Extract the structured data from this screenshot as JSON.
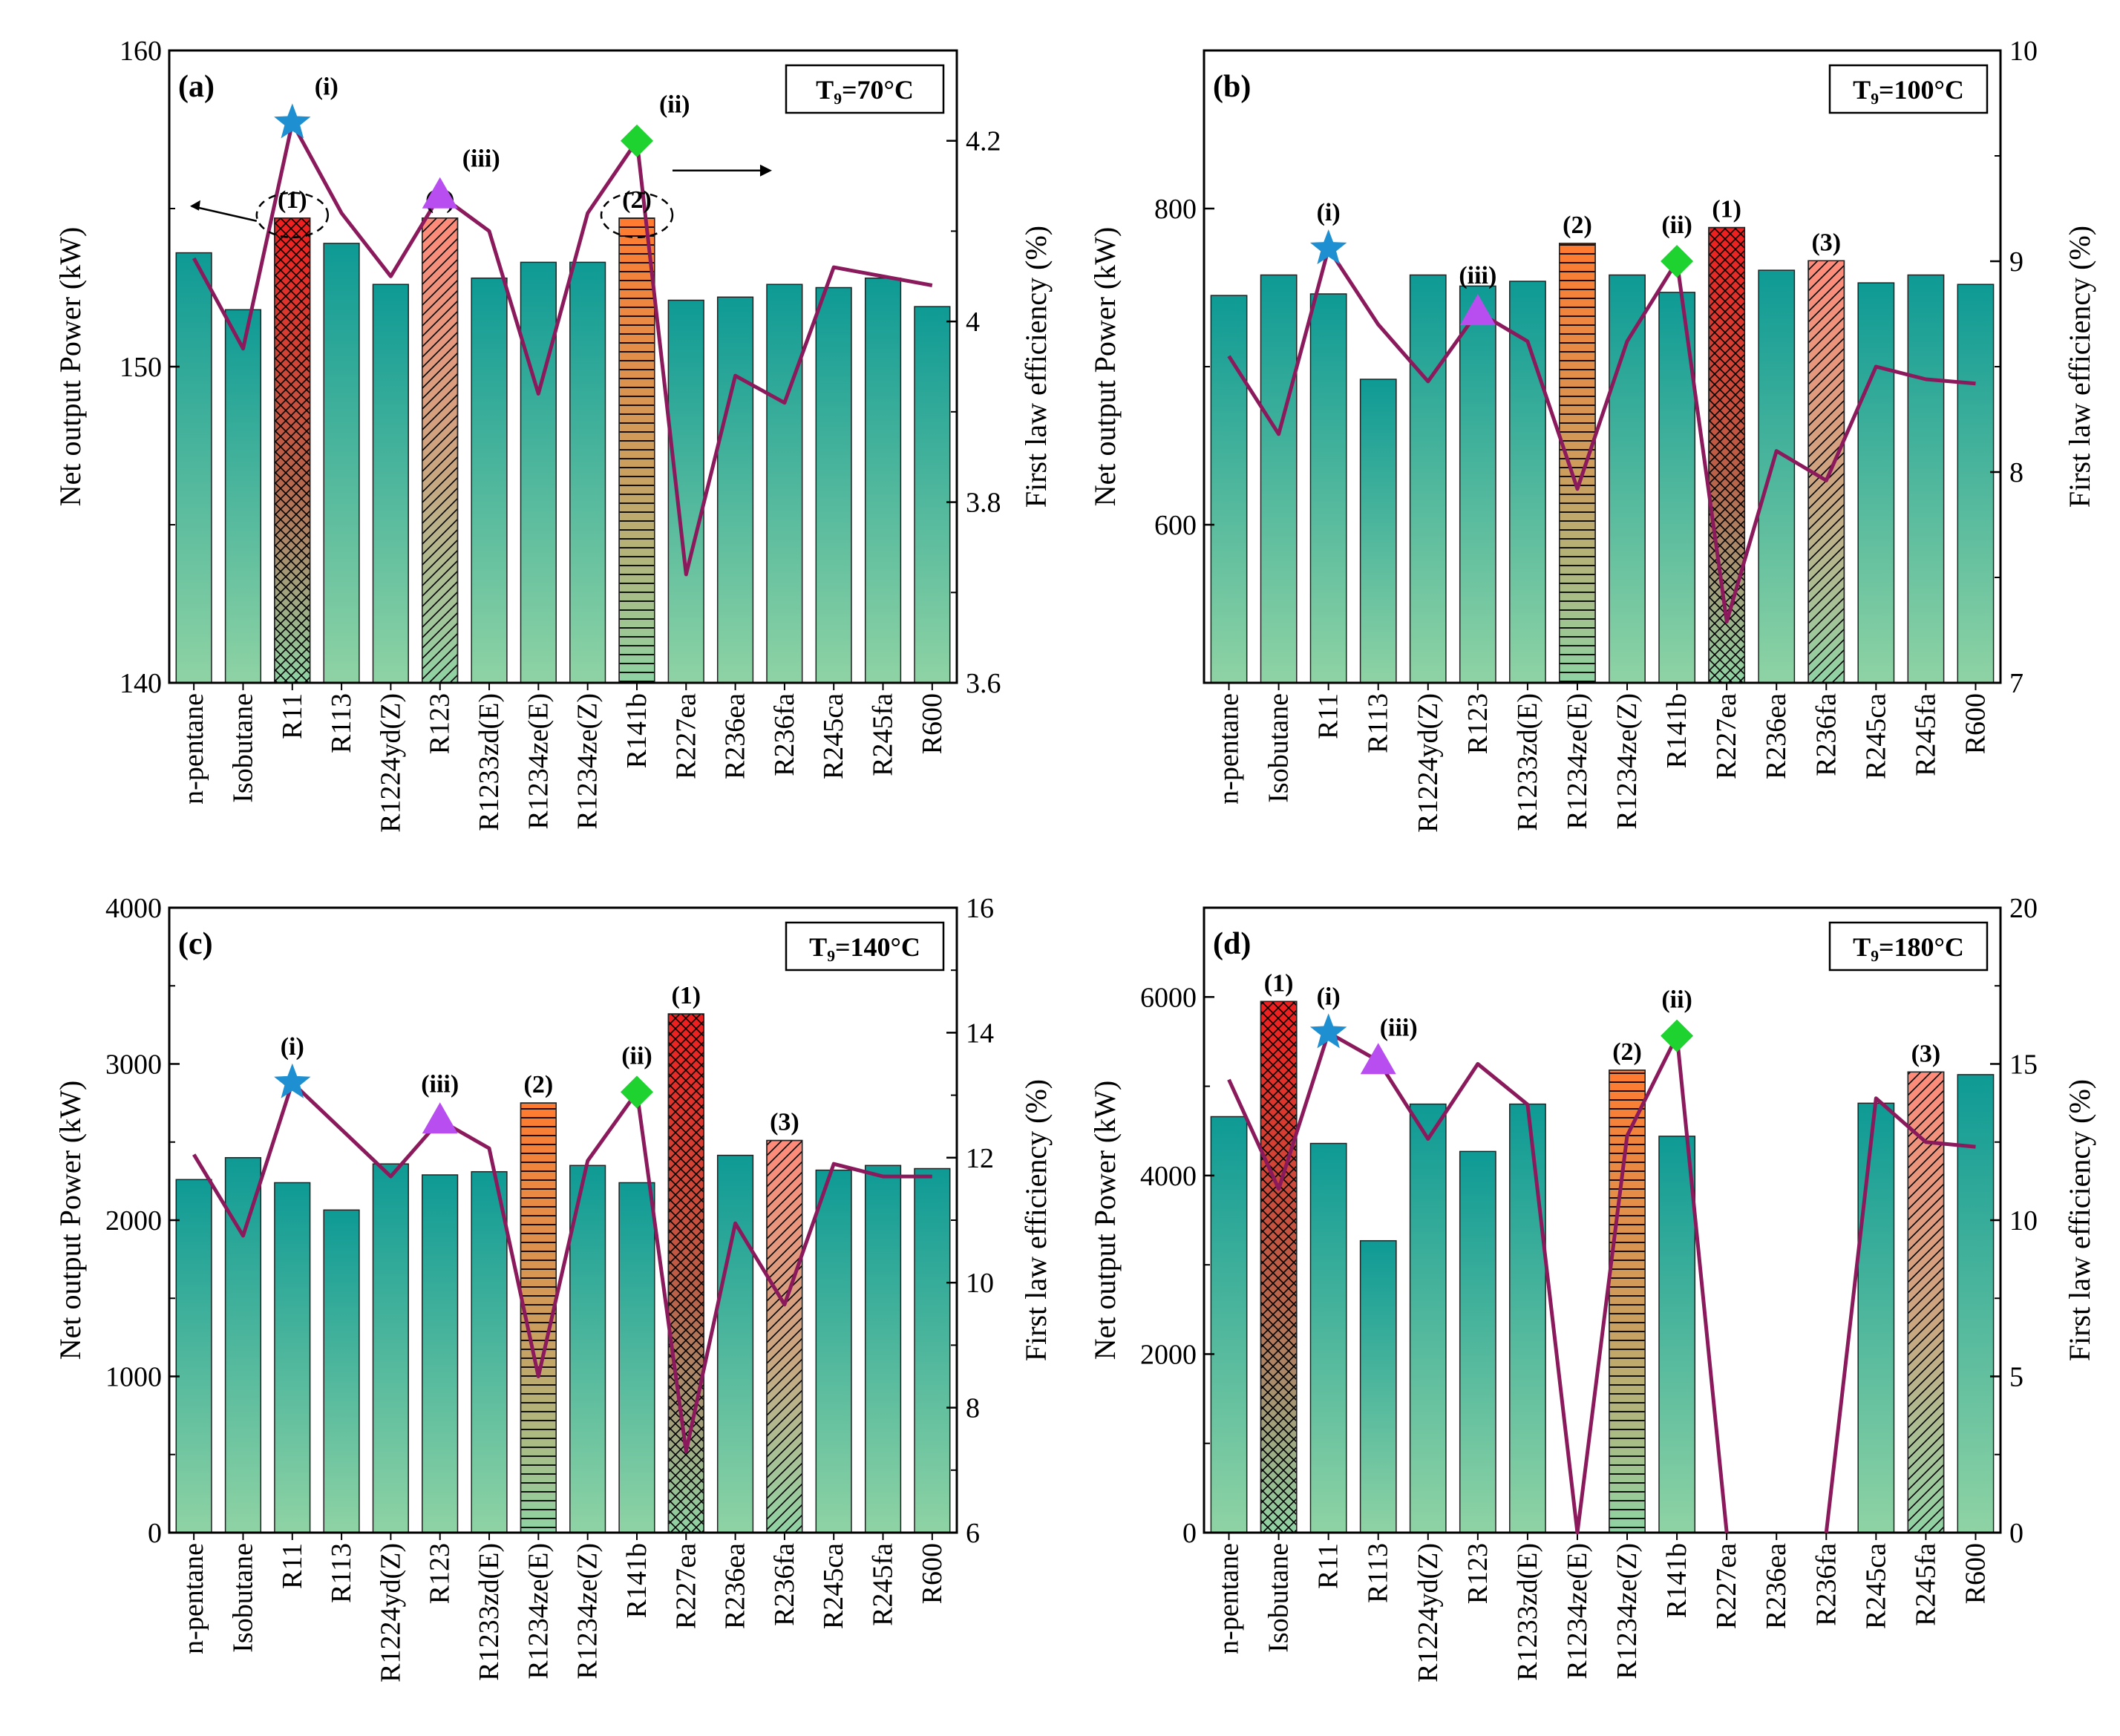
{
  "categories": [
    "n-pentane",
    "Isobutane",
    "R11",
    "R113",
    "R1224yd(Z)",
    "R123",
    "R1233zd(E)",
    "R1234ze(E)",
    "R1234ze(Z)",
    "R141b",
    "R227ea",
    "R236ea",
    "R236fa",
    "R245ca",
    "R245fa",
    "R600"
  ],
  "ylabel_left": "Net output Power (kW)",
  "ylabel_right": "First law efficiency (%)",
  "colors": {
    "bar_top": "#0e9a95",
    "bar_bottom": "#8fd3a4",
    "line": "#8b1a5c",
    "star": "#1e90d2",
    "triangle": "#b84ef0",
    "diamond": "#1ed230",
    "rank1": "#f01e1e",
    "rank2": "#ff7a30",
    "rank3": "#ff8a7a"
  },
  "chart_data": [
    {
      "type": "bar+line",
      "panel_label": "(a)",
      "temp_label": "T₉=70°C",
      "ylim_left": [
        140,
        160
      ],
      "yticks_left": [
        140,
        150,
        160
      ],
      "ylim_right": [
        3.6,
        4.3
      ],
      "yticks_right": [
        3.6,
        3.8,
        4.0,
        4.2
      ],
      "minor_left": [
        145,
        155
      ],
      "minor_right": [
        3.7,
        3.9,
        4.1,
        4.3
      ],
      "power": [
        153.6,
        151.8,
        154.7,
        153.9,
        152.6,
        154.7,
        152.8,
        153.3,
        153.3,
        154.7,
        152.1,
        152.2,
        152.6,
        152.5,
        152.8,
        151.9
      ],
      "efficiency": [
        4.07,
        3.97,
        4.22,
        4.12,
        4.05,
        4.14,
        4.1,
        3.92,
        4.12,
        4.2,
        3.72,
        3.94,
        3.91,
        4.06,
        4.05,
        4.04
      ],
      "rank_bars": [
        {
          "index": 2,
          "rank": "(1)",
          "pattern": "cross",
          "color": "rank1"
        },
        {
          "index": 9,
          "rank": "(2)",
          "pattern": "hlines",
          "color": "rank2"
        },
        {
          "index": 5,
          "rank": "(3)",
          "pattern": "diag",
          "color": "rank3"
        }
      ],
      "markers": [
        {
          "index": 2,
          "label": "(i)",
          "shape": "star"
        },
        {
          "index": 9,
          "label": "(ii)",
          "shape": "diamond"
        },
        {
          "index": 5,
          "label": "(iii)",
          "shape": "triangle"
        }
      ],
      "circled": [
        2,
        9
      ],
      "arrow_left_from": 2,
      "arrow_right_from": 9
    },
    {
      "type": "bar+line",
      "panel_label": "(b)",
      "temp_label": "T₉=100°C",
      "ylim_left": [
        500,
        900
      ],
      "yticks_left": [
        600,
        800
      ],
      "ylim_right": [
        7,
        10
      ],
      "yticks_right": [
        7,
        8,
        9,
        10
      ],
      "minor_left": [
        700
      ],
      "minor_right": [
        7.5,
        8.5,
        9.5
      ],
      "power": [
        745,
        758,
        746,
        692,
        758,
        751,
        754,
        778,
        758,
        747,
        788,
        761,
        767,
        753,
        758,
        752
      ],
      "efficiency": [
        8.55,
        8.18,
        9.06,
        8.7,
        8.43,
        8.76,
        8.62,
        7.92,
        8.62,
        9.0,
        7.29,
        8.1,
        7.96,
        8.5,
        8.44,
        8.42
      ],
      "rank_bars": [
        {
          "index": 10,
          "rank": "(1)",
          "pattern": "cross",
          "color": "rank1"
        },
        {
          "index": 7,
          "rank": "(2)",
          "pattern": "hlines",
          "color": "rank2"
        },
        {
          "index": 12,
          "rank": "(3)",
          "pattern": "diag",
          "color": "rank3"
        }
      ],
      "markers": [
        {
          "index": 2,
          "label": "(i)",
          "shape": "star"
        },
        {
          "index": 9,
          "label": "(ii)",
          "shape": "diamond"
        },
        {
          "index": 5,
          "label": "(iii)",
          "shape": "triangle"
        }
      ],
      "circled": [],
      "arrow_left_from": null,
      "arrow_right_from": null
    },
    {
      "type": "bar+line",
      "panel_label": "(c)",
      "temp_label": "T₉=140°C",
      "ylim_left": [
        0,
        4000
      ],
      "yticks_left": [
        0,
        1000,
        2000,
        3000,
        4000
      ],
      "ylim_right": [
        6,
        16
      ],
      "yticks_right": [
        6,
        8,
        10,
        12,
        14,
        16
      ],
      "minor_left": [
        500,
        1500,
        2500,
        3500
      ],
      "minor_right": [
        7,
        9,
        11,
        13,
        15
      ],
      "power": [
        2260,
        2400,
        2240,
        2065,
        2360,
        2290,
        2310,
        2750,
        2350,
        2240,
        3320,
        2415,
        2510,
        2320,
        2350,
        2330
      ],
      "efficiency": [
        12.05,
        10.75,
        13.2,
        12.45,
        11.7,
        12.6,
        12.15,
        8.5,
        11.95,
        13.05,
        7.3,
        10.95,
        9.65,
        11.9,
        11.7,
        11.7
      ],
      "rank_bars": [
        {
          "index": 10,
          "rank": "(1)",
          "pattern": "cross",
          "color": "rank1"
        },
        {
          "index": 7,
          "rank": "(2)",
          "pattern": "hlines",
          "color": "rank2"
        },
        {
          "index": 12,
          "rank": "(3)",
          "pattern": "diag",
          "color": "rank3"
        }
      ],
      "markers": [
        {
          "index": 2,
          "label": "(i)",
          "shape": "star"
        },
        {
          "index": 9,
          "label": "(ii)",
          "shape": "diamond"
        },
        {
          "index": 5,
          "label": "(iii)",
          "shape": "triangle"
        }
      ],
      "circled": [],
      "arrow_left_from": null,
      "arrow_right_from": null
    },
    {
      "type": "bar+line",
      "panel_label": "(d)",
      "temp_label": "T₉=180°C",
      "ylim_left": [
        0,
        7000
      ],
      "yticks_left": [
        0,
        2000,
        4000,
        6000
      ],
      "ylim_right": [
        0,
        20
      ],
      "yticks_right": [
        0,
        5,
        10,
        15,
        20
      ],
      "minor_left": [
        1000,
        3000,
        5000,
        7000
      ],
      "minor_right": [
        2.5,
        7.5,
        12.5,
        17.5
      ],
      "power": [
        4660,
        5950,
        4360,
        3270,
        4800,
        4270,
        4800,
        null,
        5180,
        4440,
        null,
        null,
        null,
        4810,
        5160,
        5130
      ],
      "efficiency": [
        14.5,
        11.0,
        16.0,
        15.1,
        12.6,
        15.0,
        13.7,
        0,
        12.7,
        15.9,
        0,
        null,
        0,
        13.9,
        12.5,
        12.35
      ],
      "rank_bars": [
        {
          "index": 1,
          "rank": "(1)",
          "pattern": "cross",
          "color": "rank1"
        },
        {
          "index": 8,
          "rank": "(2)",
          "pattern": "hlines",
          "color": "rank2"
        },
        {
          "index": 14,
          "rank": "(3)",
          "pattern": "diag",
          "color": "rank3"
        }
      ],
      "markers": [
        {
          "index": 2,
          "label": "(i)",
          "shape": "star"
        },
        {
          "index": 9,
          "label": "(ii)",
          "shape": "diamond"
        },
        {
          "index": 3,
          "label": "(iii)",
          "shape": "triangle"
        }
      ],
      "circled": [],
      "arrow_left_from": null,
      "arrow_right_from": null
    }
  ]
}
